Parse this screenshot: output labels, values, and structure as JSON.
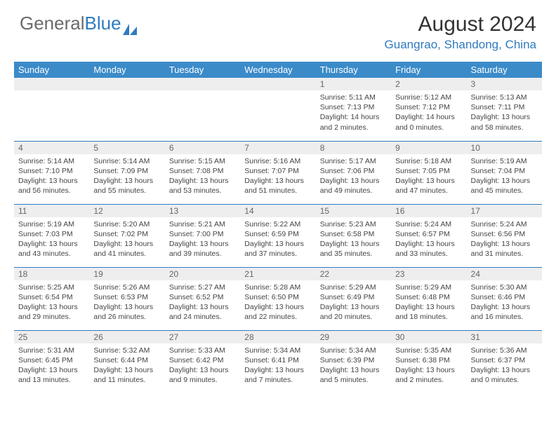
{
  "logo": {
    "text_gray": "General",
    "text_blue": "Blue"
  },
  "title": "August 2024",
  "location": "Guangrao, Shandong, China",
  "colors": {
    "header_bg": "#3b8bc9",
    "header_text": "#ffffff",
    "daynum_bg": "#eeeeee",
    "daynum_text": "#666666",
    "rule": "#2f7bbf",
    "logo_gray": "#6b6b6b",
    "logo_blue": "#2f7bbf",
    "body_text": "#444444"
  },
  "fonts": {
    "title_pt": 30,
    "location_pt": 17,
    "dow_pt": 13,
    "daynum_pt": 12,
    "body_pt": 10.5
  },
  "days_of_week": [
    "Sunday",
    "Monday",
    "Tuesday",
    "Wednesday",
    "Thursday",
    "Friday",
    "Saturday"
  ],
  "weeks": [
    [
      null,
      null,
      null,
      null,
      {
        "n": "1",
        "sunrise": "5:11 AM",
        "sunset": "7:13 PM",
        "daylight": "14 hours and 2 minutes."
      },
      {
        "n": "2",
        "sunrise": "5:12 AM",
        "sunset": "7:12 PM",
        "daylight": "14 hours and 0 minutes."
      },
      {
        "n": "3",
        "sunrise": "5:13 AM",
        "sunset": "7:11 PM",
        "daylight": "13 hours and 58 minutes."
      }
    ],
    [
      {
        "n": "4",
        "sunrise": "5:14 AM",
        "sunset": "7:10 PM",
        "daylight": "13 hours and 56 minutes."
      },
      {
        "n": "5",
        "sunrise": "5:14 AM",
        "sunset": "7:09 PM",
        "daylight": "13 hours and 55 minutes."
      },
      {
        "n": "6",
        "sunrise": "5:15 AM",
        "sunset": "7:08 PM",
        "daylight": "13 hours and 53 minutes."
      },
      {
        "n": "7",
        "sunrise": "5:16 AM",
        "sunset": "7:07 PM",
        "daylight": "13 hours and 51 minutes."
      },
      {
        "n": "8",
        "sunrise": "5:17 AM",
        "sunset": "7:06 PM",
        "daylight": "13 hours and 49 minutes."
      },
      {
        "n": "9",
        "sunrise": "5:18 AM",
        "sunset": "7:05 PM",
        "daylight": "13 hours and 47 minutes."
      },
      {
        "n": "10",
        "sunrise": "5:19 AM",
        "sunset": "7:04 PM",
        "daylight": "13 hours and 45 minutes."
      }
    ],
    [
      {
        "n": "11",
        "sunrise": "5:19 AM",
        "sunset": "7:03 PM",
        "daylight": "13 hours and 43 minutes."
      },
      {
        "n": "12",
        "sunrise": "5:20 AM",
        "sunset": "7:02 PM",
        "daylight": "13 hours and 41 minutes."
      },
      {
        "n": "13",
        "sunrise": "5:21 AM",
        "sunset": "7:00 PM",
        "daylight": "13 hours and 39 minutes."
      },
      {
        "n": "14",
        "sunrise": "5:22 AM",
        "sunset": "6:59 PM",
        "daylight": "13 hours and 37 minutes."
      },
      {
        "n": "15",
        "sunrise": "5:23 AM",
        "sunset": "6:58 PM",
        "daylight": "13 hours and 35 minutes."
      },
      {
        "n": "16",
        "sunrise": "5:24 AM",
        "sunset": "6:57 PM",
        "daylight": "13 hours and 33 minutes."
      },
      {
        "n": "17",
        "sunrise": "5:24 AM",
        "sunset": "6:56 PM",
        "daylight": "13 hours and 31 minutes."
      }
    ],
    [
      {
        "n": "18",
        "sunrise": "5:25 AM",
        "sunset": "6:54 PM",
        "daylight": "13 hours and 29 minutes."
      },
      {
        "n": "19",
        "sunrise": "5:26 AM",
        "sunset": "6:53 PM",
        "daylight": "13 hours and 26 minutes."
      },
      {
        "n": "20",
        "sunrise": "5:27 AM",
        "sunset": "6:52 PM",
        "daylight": "13 hours and 24 minutes."
      },
      {
        "n": "21",
        "sunrise": "5:28 AM",
        "sunset": "6:50 PM",
        "daylight": "13 hours and 22 minutes."
      },
      {
        "n": "22",
        "sunrise": "5:29 AM",
        "sunset": "6:49 PM",
        "daylight": "13 hours and 20 minutes."
      },
      {
        "n": "23",
        "sunrise": "5:29 AM",
        "sunset": "6:48 PM",
        "daylight": "13 hours and 18 minutes."
      },
      {
        "n": "24",
        "sunrise": "5:30 AM",
        "sunset": "6:46 PM",
        "daylight": "13 hours and 16 minutes."
      }
    ],
    [
      {
        "n": "25",
        "sunrise": "5:31 AM",
        "sunset": "6:45 PM",
        "daylight": "13 hours and 13 minutes."
      },
      {
        "n": "26",
        "sunrise": "5:32 AM",
        "sunset": "6:44 PM",
        "daylight": "13 hours and 11 minutes."
      },
      {
        "n": "27",
        "sunrise": "5:33 AM",
        "sunset": "6:42 PM",
        "daylight": "13 hours and 9 minutes."
      },
      {
        "n": "28",
        "sunrise": "5:34 AM",
        "sunset": "6:41 PM",
        "daylight": "13 hours and 7 minutes."
      },
      {
        "n": "29",
        "sunrise": "5:34 AM",
        "sunset": "6:39 PM",
        "daylight": "13 hours and 5 minutes."
      },
      {
        "n": "30",
        "sunrise": "5:35 AM",
        "sunset": "6:38 PM",
        "daylight": "13 hours and 2 minutes."
      },
      {
        "n": "31",
        "sunrise": "5:36 AM",
        "sunset": "6:37 PM",
        "daylight": "13 hours and 0 minutes."
      }
    ]
  ],
  "labels": {
    "sunrise": "Sunrise: ",
    "sunset": "Sunset: ",
    "daylight": "Daylight: "
  }
}
